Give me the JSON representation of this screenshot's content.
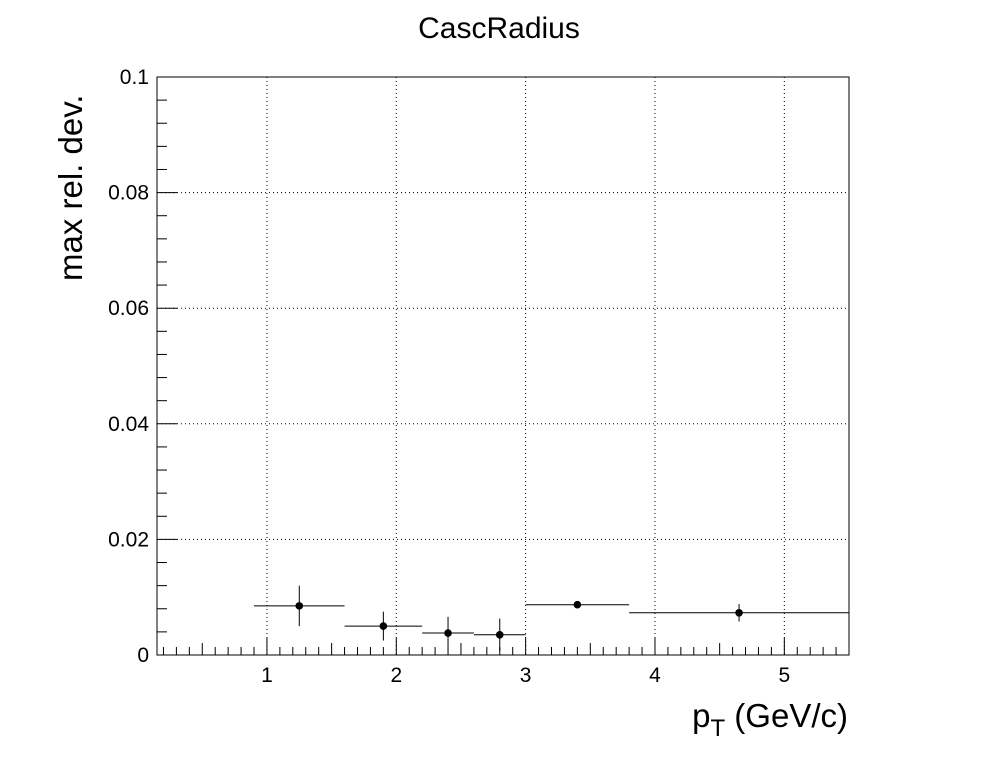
{
  "chart_data": {
    "type": "scatter",
    "title": "CascRadius",
    "xlabel": {
      "main": "p",
      "sub": "T",
      "suffix": " (GeV/c)"
    },
    "ylabel": "max rel. dev.",
    "xlim": [
      0.15,
      5.5
    ],
    "ylim": [
      0,
      0.1
    ],
    "grid": true,
    "x_ticks": [
      1,
      2,
      3,
      4,
      5
    ],
    "y_ticks": [
      0,
      0.02,
      0.04,
      0.06,
      0.08,
      0.1
    ],
    "y_tick_labels": [
      "0",
      "0.02",
      "0.04",
      "0.06",
      "0.08",
      "0.1"
    ],
    "points": [
      {
        "x": 1.25,
        "y": 0.0085,
        "xerr": [
          0.9,
          1.6
        ],
        "yerr": 0.0035
      },
      {
        "x": 1.9,
        "y": 0.005,
        "xerr": [
          1.6,
          2.2
        ],
        "yerr": 0.0025
      },
      {
        "x": 2.4,
        "y": 0.0038,
        "xerr": [
          2.2,
          2.6
        ],
        "yerr": 0.0028
      },
      {
        "x": 2.8,
        "y": 0.0035,
        "xerr": [
          2.6,
          3.0
        ],
        "yerr": 0.0028
      },
      {
        "x": 3.4,
        "y": 0.0087,
        "xerr": [
          3.0,
          3.8
        ],
        "yerr": 0.0005
      },
      {
        "x": 4.65,
        "y": 0.0073,
        "xerr": [
          3.8,
          5.5
        ],
        "yerr": 0.0015
      }
    ]
  }
}
